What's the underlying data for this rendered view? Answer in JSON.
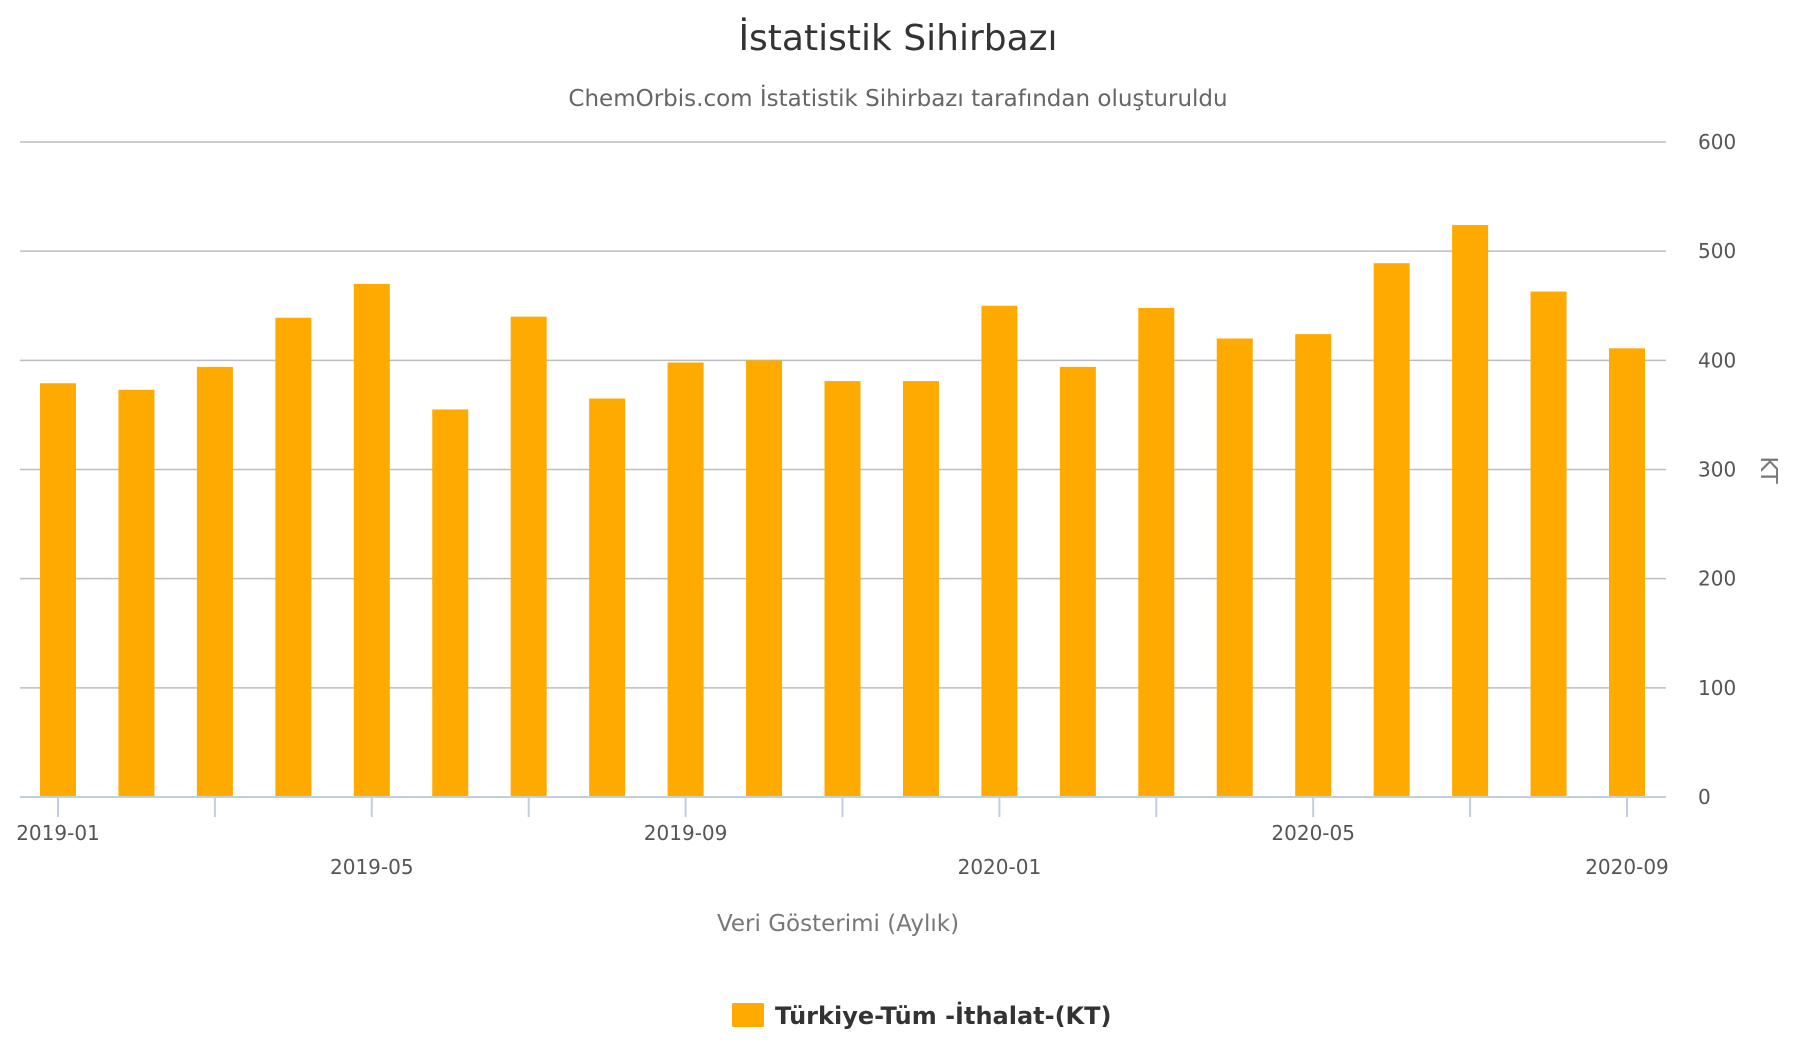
{
  "chart_data": {
    "type": "bar",
    "title": "İstatistik Sihirbazı",
    "subtitle": "ChemOrbis.com İstatistik Sihirbazı tarafından oluşturuldu",
    "xlabel": "Veri Gösterimi (Aylık)",
    "ylabel": "KT",
    "ylim": [
      0,
      600
    ],
    "yticks": [
      "0",
      "100",
      "200",
      "300",
      "400",
      "500",
      "600"
    ],
    "grid": true,
    "legend_position": "bottom-center",
    "categories": [
      "2019-01",
      "2019-02",
      "2019-03",
      "2019-04",
      "2019-05",
      "2019-06",
      "2019-07",
      "2019-08",
      "2019-09",
      "2019-10",
      "2019-11",
      "2019-12",
      "2020-01",
      "2020-02",
      "2020-03",
      "2020-04",
      "2020-05",
      "2020-06",
      "2020-07",
      "2020-08",
      "2020-09"
    ],
    "x_tick_labels": [
      "2019-01",
      "2019-05",
      "2019-09",
      "2020-01",
      "2020-05",
      "2020-09"
    ],
    "series": [
      {
        "name": "Türkiye-Tüm -İthalat-(KT)",
        "color": "#ffaa00",
        "values": [
          379,
          373,
          394,
          439,
          470,
          355,
          440,
          365,
          398,
          400,
          381,
          381,
          450,
          394,
          448,
          420,
          424,
          489,
          524,
          463,
          411
        ]
      }
    ]
  }
}
